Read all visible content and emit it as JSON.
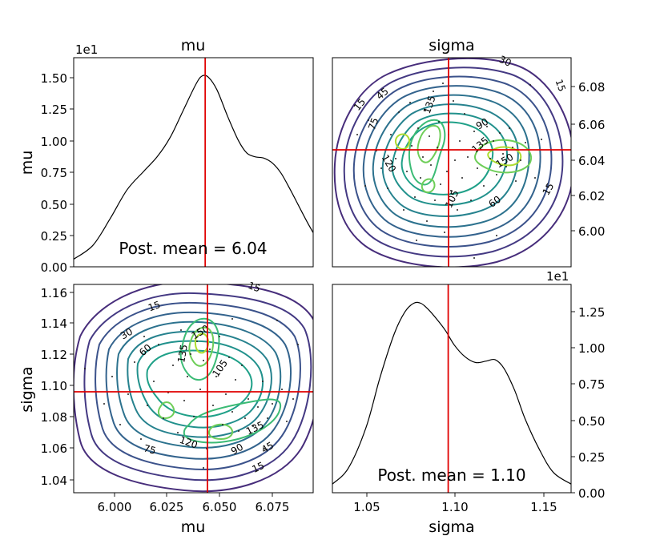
{
  "chart_data": [
    {
      "type": "line",
      "panel": "top-left",
      "title": "mu",
      "xlabel": "",
      "ylabel": "mu",
      "axis_multiplier": "1e1",
      "xlim": [
        5.983,
        6.095
      ],
      "ylim": [
        0,
        1.655
      ],
      "y_ticks": [
        "0.00",
        "0.25",
        "0.50",
        "0.75",
        "1.00",
        "1.25",
        "1.50"
      ],
      "posterior_mean_label": "Post. mean = 6.04",
      "mean_line_x": 6.0445,
      "density_x": [
        5.983,
        5.992,
        6.0,
        6.008,
        6.016,
        6.022,
        6.028,
        6.034,
        6.04,
        6.043,
        6.046,
        6.05,
        6.055,
        6.06,
        6.064,
        6.068,
        6.072,
        6.076,
        6.08,
        6.084,
        6.088,
        6.092,
        6.095
      ],
      "density_y": [
        0.06,
        0.17,
        0.38,
        0.61,
        0.76,
        0.87,
        1.02,
        1.23,
        1.44,
        1.51,
        1.5,
        1.4,
        1.19,
        1.0,
        0.9,
        0.87,
        0.86,
        0.82,
        0.74,
        0.62,
        0.49,
        0.36,
        0.27
      ]
    },
    {
      "type": "contour",
      "panel": "top-right",
      "title": "sigma",
      "xlabel": "",
      "ylabel": "",
      "x_quantity": "sigma",
      "y_quantity": "mu",
      "xlim": [
        1.031,
        1.166
      ],
      "ylim": [
        5.98,
        6.096
      ],
      "y_ticks": [
        "6.00",
        "6.02",
        "6.04",
        "6.06",
        "6.08"
      ],
      "mean_x": 1.0965,
      "mean_y": 6.0445,
      "contour_labels": [
        "15",
        "15",
        "15",
        "30",
        "45",
        "60",
        "75",
        "90",
        "105",
        "120",
        "135",
        "135",
        "150"
      ]
    },
    {
      "type": "contour",
      "panel": "bottom-left",
      "title": "",
      "xlabel": "mu",
      "ylabel": "sigma",
      "x_quantity": "mu",
      "y_quantity": "sigma",
      "xlim": [
        5.983,
        6.095
      ],
      "ylim": [
        1.031,
        1.166
      ],
      "x_ticks": [
        "6.000",
        "6.025",
        "6.050",
        "6.075"
      ],
      "y_ticks": [
        "1.04",
        "1.06",
        "1.08",
        "1.10",
        "1.12",
        "1.14",
        "1.16"
      ],
      "mean_x": 6.0445,
      "mean_y": 1.0965,
      "contour_labels": [
        "15",
        "15",
        "15",
        "30",
        "45",
        "60",
        "75",
        "90",
        "105",
        "120",
        "135",
        "135",
        "150"
      ]
    },
    {
      "type": "line",
      "panel": "bottom-right",
      "title": "",
      "xlabel": "sigma",
      "ylabel": "",
      "axis_multiplier": "1e1",
      "xlim": [
        1.031,
        1.166
      ],
      "ylim": [
        0,
        1.44
      ],
      "x_ticks": [
        "1.05",
        "1.10",
        "1.15"
      ],
      "y_ticks": [
        "0.00",
        "0.25",
        "0.50",
        "0.75",
        "1.00",
        "1.25"
      ],
      "posterior_mean_label": "Post. mean = 1.10",
      "mean_line_x": 1.0965,
      "density_x": [
        1.031,
        1.04,
        1.05,
        1.058,
        1.066,
        1.072,
        1.077,
        1.081,
        1.085,
        1.09,
        1.095,
        1.1,
        1.106,
        1.112,
        1.118,
        1.123,
        1.128,
        1.134,
        1.14,
        1.148,
        1.156,
        1.166
      ],
      "density_y": [
        0.06,
        0.17,
        0.45,
        0.8,
        1.1,
        1.25,
        1.31,
        1.31,
        1.27,
        1.2,
        1.12,
        1.02,
        0.94,
        0.9,
        0.91,
        0.92,
        0.86,
        0.71,
        0.51,
        0.3,
        0.14,
        0.06
      ]
    }
  ]
}
